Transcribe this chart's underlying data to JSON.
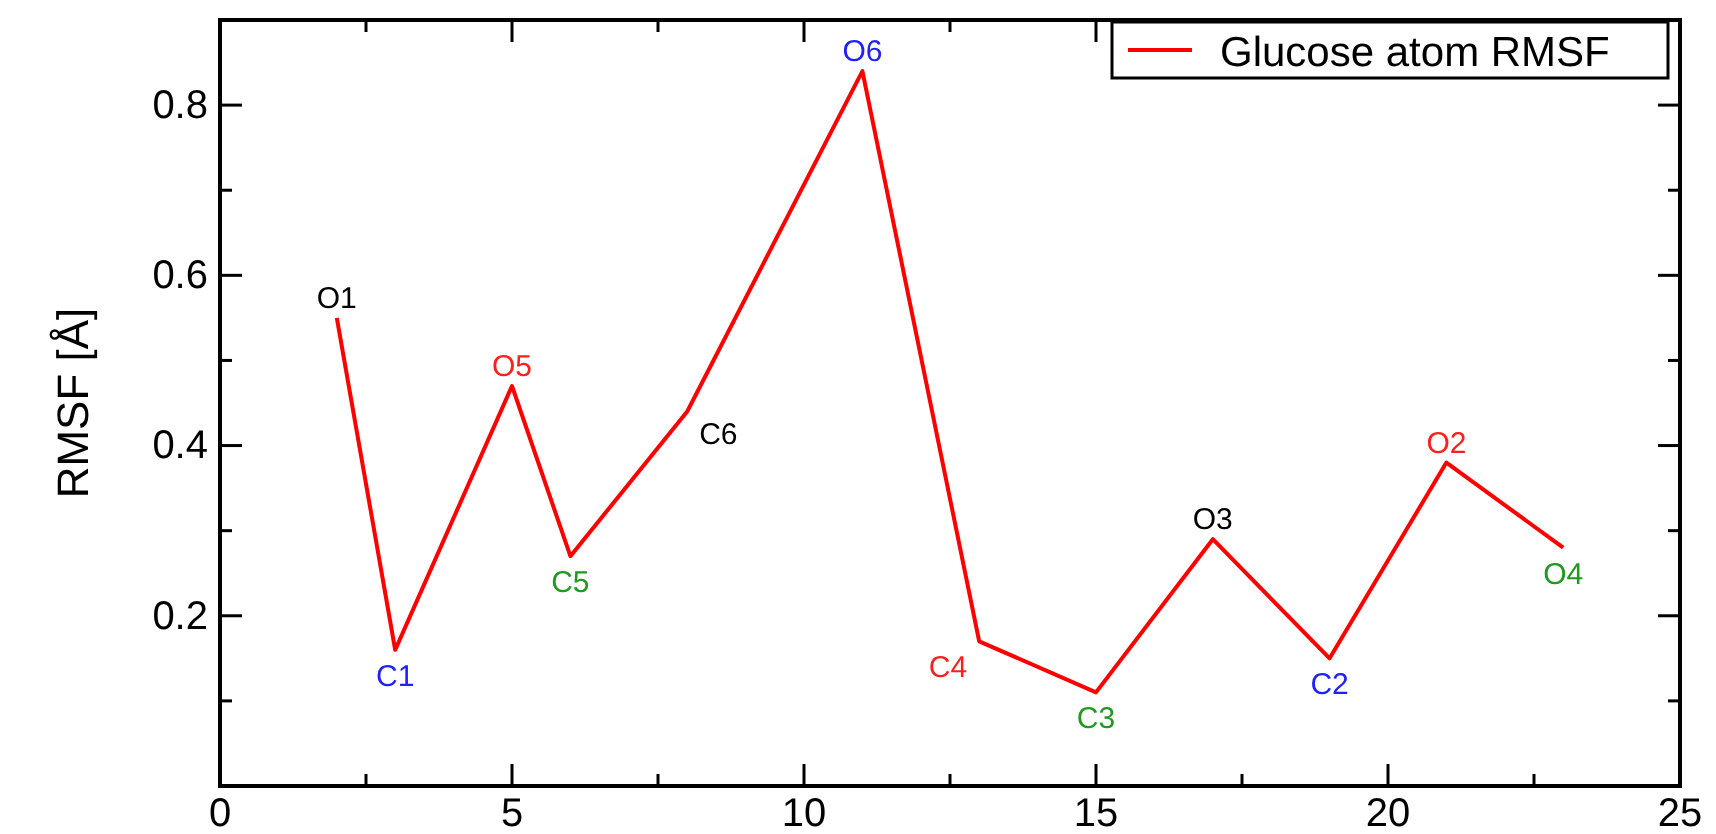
{
  "chart_data": {
    "type": "line",
    "ylabel": "RMSF [Å]",
    "x": [
      2,
      3,
      5,
      6,
      8,
      11,
      13,
      15,
      17,
      19,
      21,
      23
    ],
    "series": [
      {
        "name": "Glucose atom RMSF",
        "color": "#ff0000",
        "values": [
          0.55,
          0.16,
          0.47,
          0.27,
          0.44,
          0.84,
          0.17,
          0.11,
          0.29,
          0.15,
          0.38,
          0.28
        ]
      }
    ],
    "annotations": [
      {
        "text": "O1",
        "x": 2,
        "y": 0.55
      },
      {
        "text": "C1",
        "x": 3,
        "y": 0.16
      },
      {
        "text": "O5",
        "x": 5,
        "y": 0.47
      },
      {
        "text": "C5",
        "x": 6,
        "y": 0.27
      },
      {
        "text": "C6",
        "x": 8,
        "y": 0.44
      },
      {
        "text": "O6",
        "x": 11,
        "y": 0.84
      },
      {
        "text": "C4",
        "x": 13,
        "y": 0.17
      },
      {
        "text": "C3",
        "x": 15,
        "y": 0.11
      },
      {
        "text": "O3",
        "x": 17,
        "y": 0.29
      },
      {
        "text": "C2",
        "x": 19,
        "y": 0.15
      },
      {
        "text": "O2",
        "x": 21,
        "y": 0.38
      },
      {
        "text": "O4",
        "x": 23,
        "y": 0.28
      }
    ],
    "xlim": [
      0,
      25
    ],
    "ylim": [
      0,
      0.9
    ],
    "xticks": [
      0,
      {
        "value": 2.5,
        "label": null
      },
      5,
      {
        "value": 7.5,
        "label": null
      },
      10,
      {
        "value": 12.5,
        "label": null
      },
      15,
      {
        "value": 17.5,
        "label": null
      },
      20,
      {
        "value": 22.5,
        "label": null
      },
      25
    ],
    "yticks": [
      {
        "value": 0.1,
        "label": null
      },
      0.2,
      {
        "value": 0.3,
        "label": null
      },
      0.4,
      {
        "value": 0.5,
        "label": null
      },
      0.6,
      {
        "value": 0.7,
        "label": null
      },
      0.8
    ],
    "legend": "top right",
    "marker": "none",
    "line_style": "solid",
    "grid": false
  }
}
